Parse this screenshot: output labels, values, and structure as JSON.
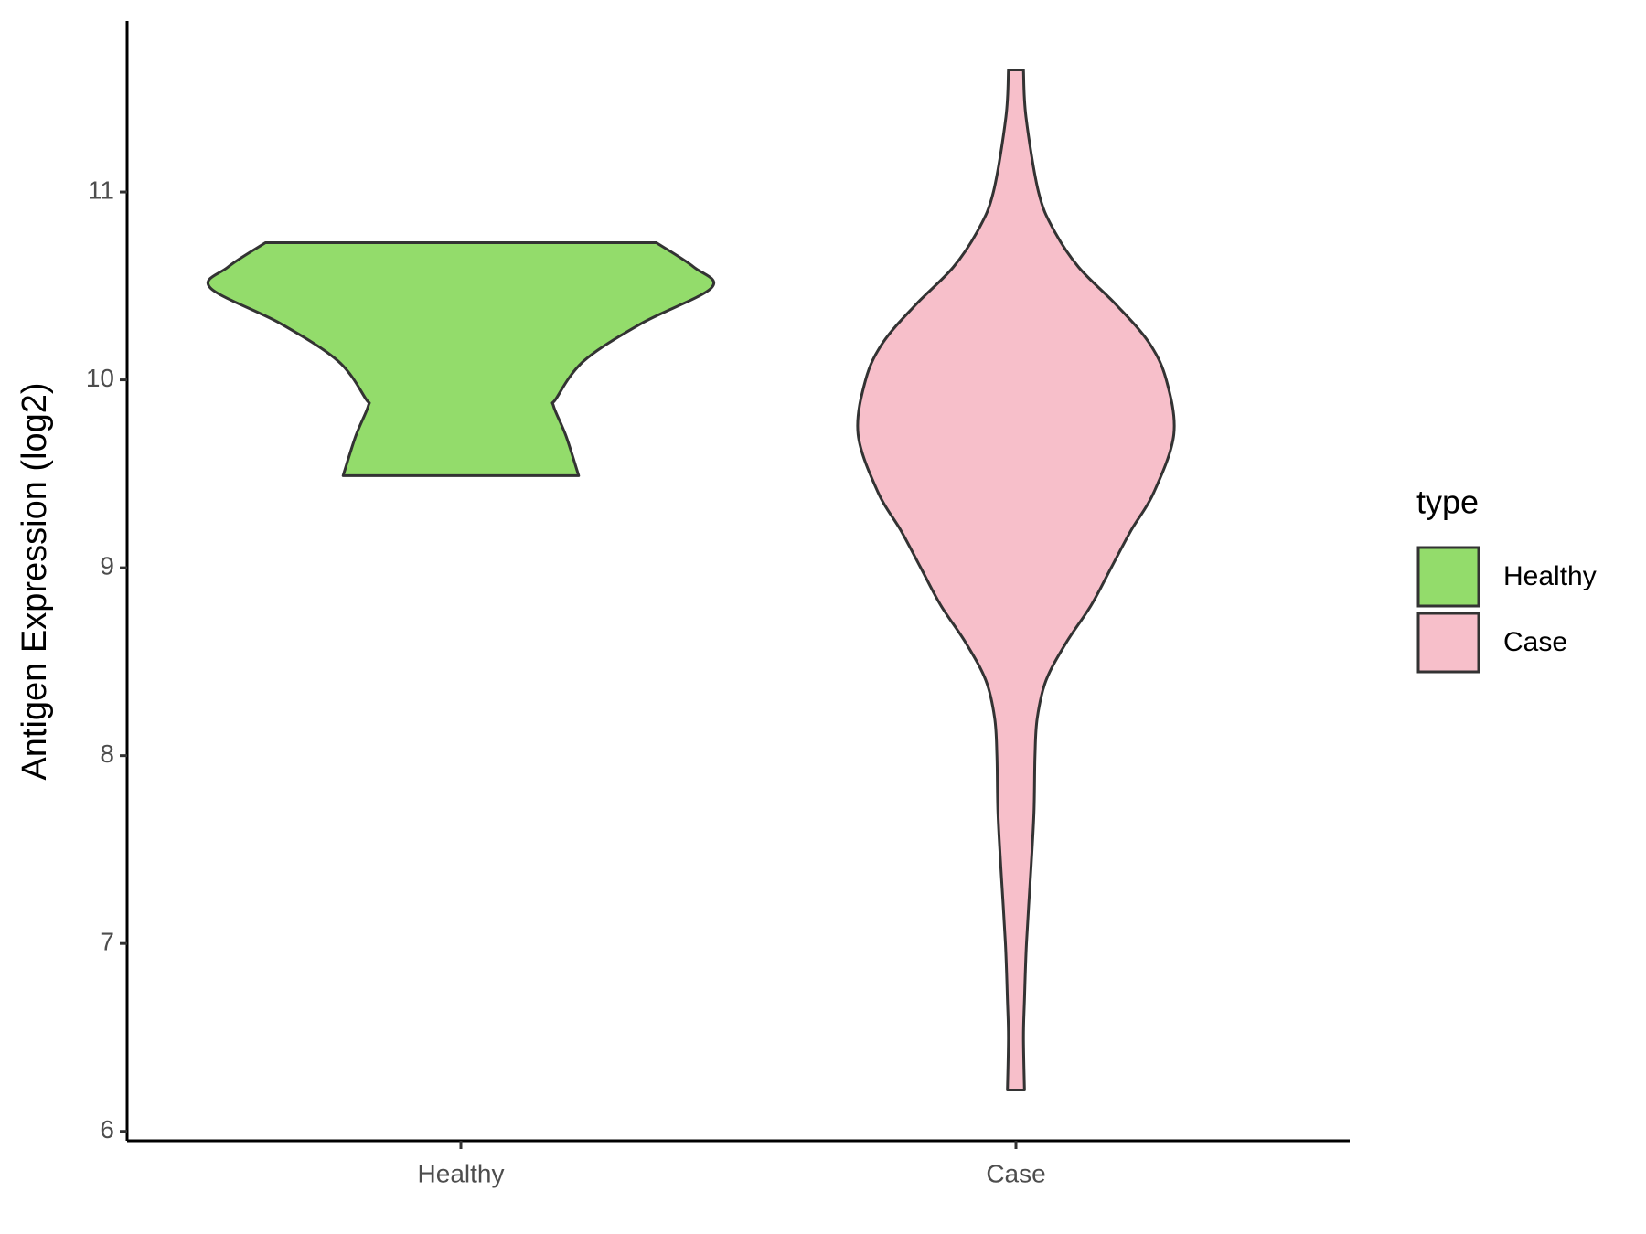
{
  "chart_data": {
    "type": "violin",
    "y_label": "Antigen Expression (log2)",
    "categories": [
      "Healthy",
      "Case"
    ],
    "legend_title": "type",
    "legend_position": "right",
    "ylim": [
      5.95,
      11.91
    ],
    "yticks": [
      6,
      7,
      8,
      9,
      10,
      11
    ],
    "grid": false,
    "series": [
      {
        "name": "Healthy",
        "color": "#93dc6b",
        "y": [
          10.73,
          10.6,
          10.49,
          10.3,
          10.1,
          9.9,
          9.86,
          9.7,
          9.49
        ],
        "density": [
          0.78,
          0.93,
          1.0,
          0.72,
          0.49,
          0.38,
          0.37,
          0.42,
          0.47
        ]
      },
      {
        "name": "Case",
        "color": "#f7bfca",
        "y": [
          11.65,
          11.4,
          11.0,
          10.8,
          10.6,
          10.4,
          10.2,
          10.0,
          9.71,
          9.4,
          9.2,
          9.0,
          8.8,
          8.6,
          8.4,
          8.2,
          8.0,
          7.7,
          7.4,
          7.0,
          6.7,
          6.5,
          6.22
        ],
        "density": [
          0.03,
          0.04,
          0.09,
          0.15,
          0.25,
          0.4,
          0.53,
          0.6,
          0.63,
          0.55,
          0.46,
          0.38,
          0.3,
          0.2,
          0.12,
          0.085,
          0.076,
          0.072,
          0.06,
          0.042,
          0.034,
          0.03,
          0.034
        ]
      }
    ]
  }
}
